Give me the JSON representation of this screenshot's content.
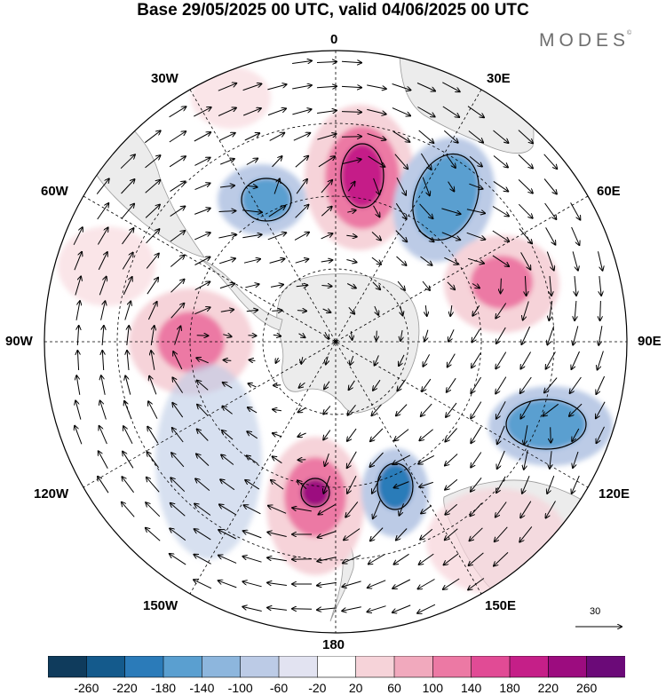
{
  "title": "Base 29/05/2025 00 UTC, valid 04/06/2025 00 UTC",
  "brand": {
    "name": "MODES",
    "mark": "©"
  },
  "longitude_labels": {
    "top": "0",
    "bottom": "180",
    "left": "90W",
    "right": "90E",
    "upper_left_inner": "30W",
    "upper_right_inner": "30E",
    "upper_left_outer": "60W",
    "upper_right_outer": "60E",
    "lower_left_outer": "120W",
    "lower_right_outer": "120E",
    "lower_left_inner": "150W",
    "lower_right_inner": "150E"
  },
  "reference_vector": {
    "label": "30"
  },
  "colorbar": {
    "ticks": [
      "-260",
      "-220",
      "-180",
      "-140",
      "-100",
      "-60",
      "-20",
      "20",
      "60",
      "100",
      "140",
      "180",
      "220",
      "260"
    ],
    "colors": [
      "#0f3b5c",
      "#145a8c",
      "#2b7bb9",
      "#5a9fd0",
      "#8db6dd",
      "#bccbe6",
      "#e2e3f1",
      "#ffffff",
      "#f6d3d9",
      "#f1a9bd",
      "#ec79a4",
      "#e14b95",
      "#c51f88",
      "#9c0c7f",
      "#6b0a78"
    ]
  },
  "map": {
    "projection": "south-polar-stereographic",
    "land_color": "#ececec",
    "anomaly_features": [
      {
        "name": "positive-center-near-0",
        "sign": "positive",
        "peak": 220
      },
      {
        "name": "negative-center-near-30E",
        "sign": "negative",
        "peak": -180
      },
      {
        "name": "negative-center-near-30W",
        "sign": "negative",
        "peak": -140
      },
      {
        "name": "positive-center-near-60E",
        "sign": "positive",
        "peak": 140
      },
      {
        "name": "positive-center-near-90W",
        "sign": "positive",
        "peak": 140
      },
      {
        "name": "negative-center-near-120E",
        "sign": "negative",
        "peak": -140
      },
      {
        "name": "positive-center-near-180",
        "sign": "positive",
        "peak": 260
      },
      {
        "name": "negative-center-near-165E",
        "sign": "negative",
        "peak": -180
      }
    ]
  }
}
